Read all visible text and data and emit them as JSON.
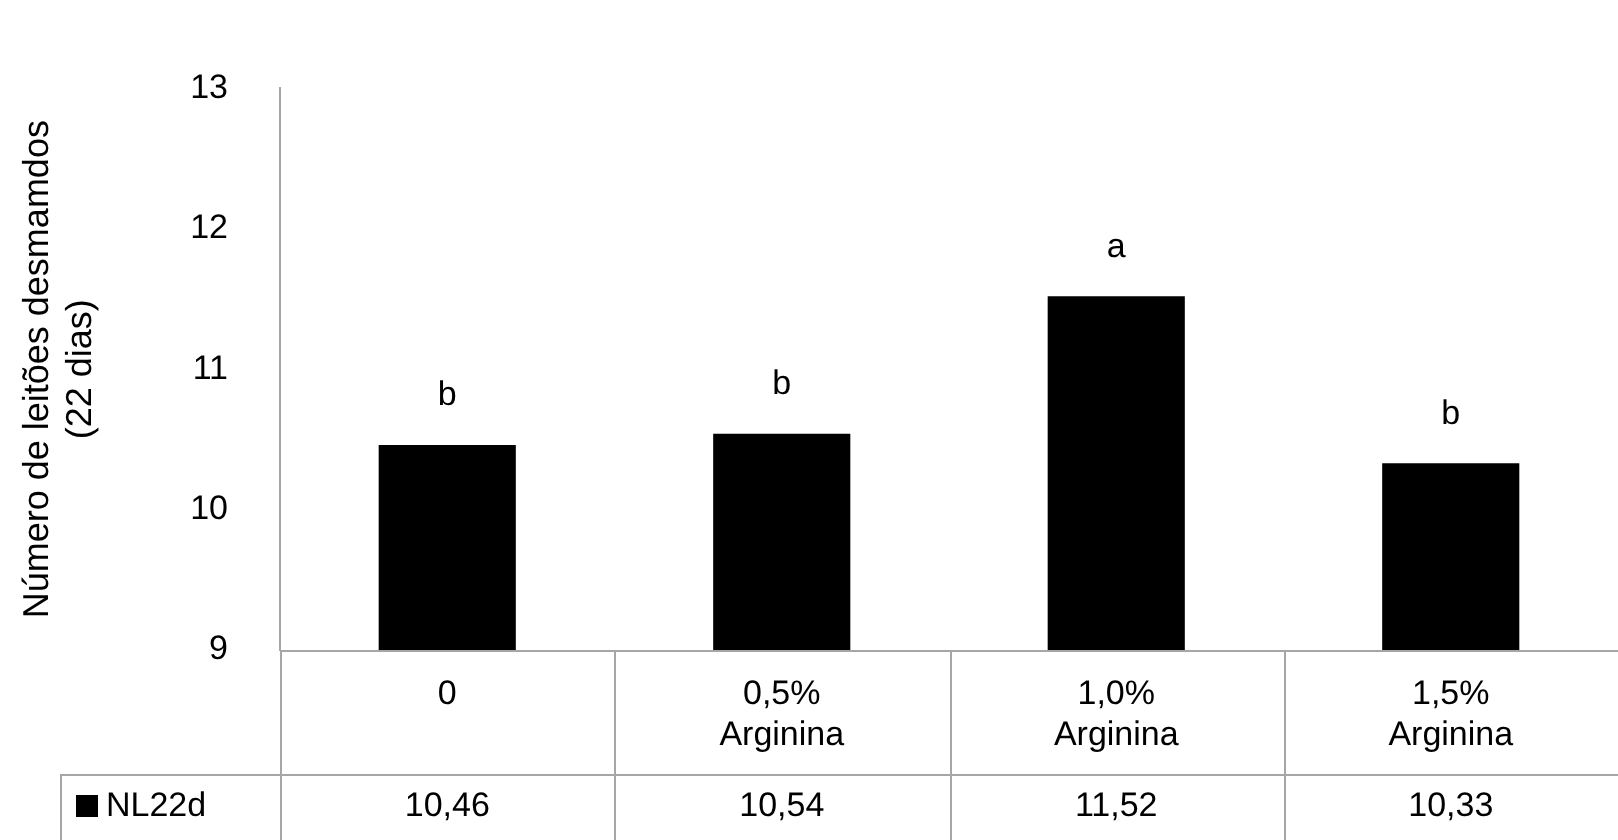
{
  "chart_data": {
    "type": "bar",
    "ylabel": "Número de leitões desmamdos (22 dias)",
    "categories": [
      "0",
      "0,5% Arginina",
      "1,0% Arginina",
      "1,5% Arginina"
    ],
    "series": [
      {
        "name": "NL22d",
        "color": "#000000",
        "values": [
          10.46,
          10.54,
          11.52,
          10.33
        ],
        "value_labels": [
          "10,46",
          "10,54",
          "11,52",
          "10,33"
        ]
      }
    ],
    "ylim": [
      9,
      13
    ],
    "yticks": [
      9,
      10,
      11,
      12,
      13
    ],
    "grid": false,
    "legend": "bottom left",
    "annotations": [
      {
        "text": "b",
        "x": "0",
        "y": 10.46
      },
      {
        "text": "b",
        "x": "0,5% Arginina",
        "y": 10.54
      },
      {
        "text": "a",
        "x": "1,0% Arginina",
        "y": 11.52
      },
      {
        "text": "b",
        "x": "1,5% Arginina",
        "y": 10.33
      }
    ]
  }
}
